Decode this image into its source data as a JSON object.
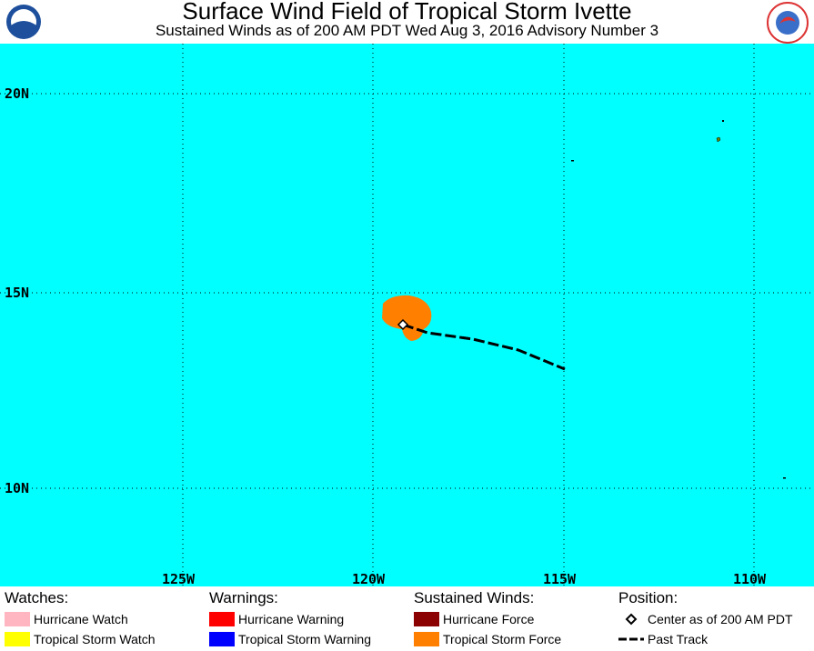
{
  "header": {
    "title": "Surface Wind Field of Tropical Storm Ivette",
    "subtitle": "Sustained Winds as of 200 AM PDT Wed Aug 3, 2016    Advisory Number 3"
  },
  "map": {
    "lat_labels": [
      "20N",
      "15N",
      "10N"
    ],
    "lon_labels": [
      "125W",
      "120W",
      "115W",
      "110W"
    ]
  },
  "legend": {
    "watches": {
      "heading": "Watches:",
      "items": [
        "Hurricane Watch",
        "Tropical Storm Watch"
      ]
    },
    "warnings": {
      "heading": "Warnings:",
      "items": [
        "Hurricane Warning",
        "Tropical Storm Warning"
      ]
    },
    "winds": {
      "heading": "Sustained Winds:",
      "items": [
        "Hurricane Force",
        "Tropical Storm Force"
      ]
    },
    "position": {
      "heading": "Position:",
      "items": [
        "Center as of 200 AM PDT",
        "Past Track"
      ]
    }
  }
}
